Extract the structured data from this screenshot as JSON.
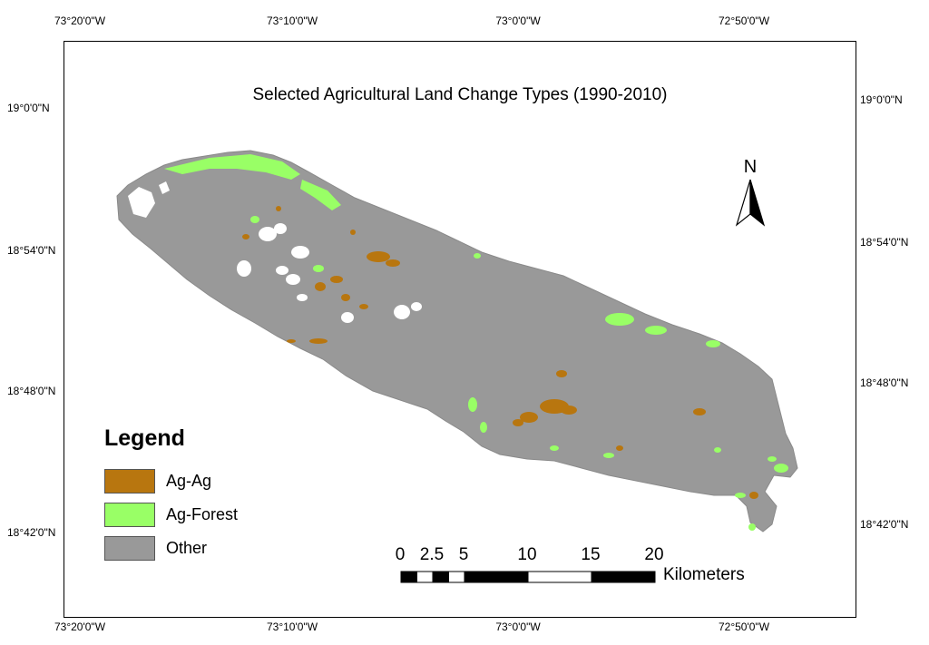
{
  "map": {
    "title": "Selected Agricultural Land Change Types (1990-2010)",
    "north_label": "N",
    "legend": {
      "heading": "Legend",
      "items": [
        {
          "label": "Ag-Ag",
          "color": "#b8760f"
        },
        {
          "label": "Ag-Forest",
          "color": "#99ff66"
        },
        {
          "label": "Other",
          "color": "#999999"
        }
      ]
    },
    "scale": {
      "labels": [
        "0",
        "2.5",
        "5",
        "10",
        "15",
        "20"
      ],
      "unit": "Kilometers"
    },
    "graticule": {
      "longitudes": [
        "73°20'0\"W",
        "73°10'0\"W",
        "73°0'0\"W",
        "72°50'0\"W"
      ],
      "latitudes": [
        "19°0'0\"N",
        "18°54'0\"N",
        "18°48'0\"N",
        "18°42'0\"N"
      ]
    },
    "colors": {
      "land": "#999999",
      "ag_ag": "#b8760f",
      "ag_forest": "#99ff66"
    }
  }
}
